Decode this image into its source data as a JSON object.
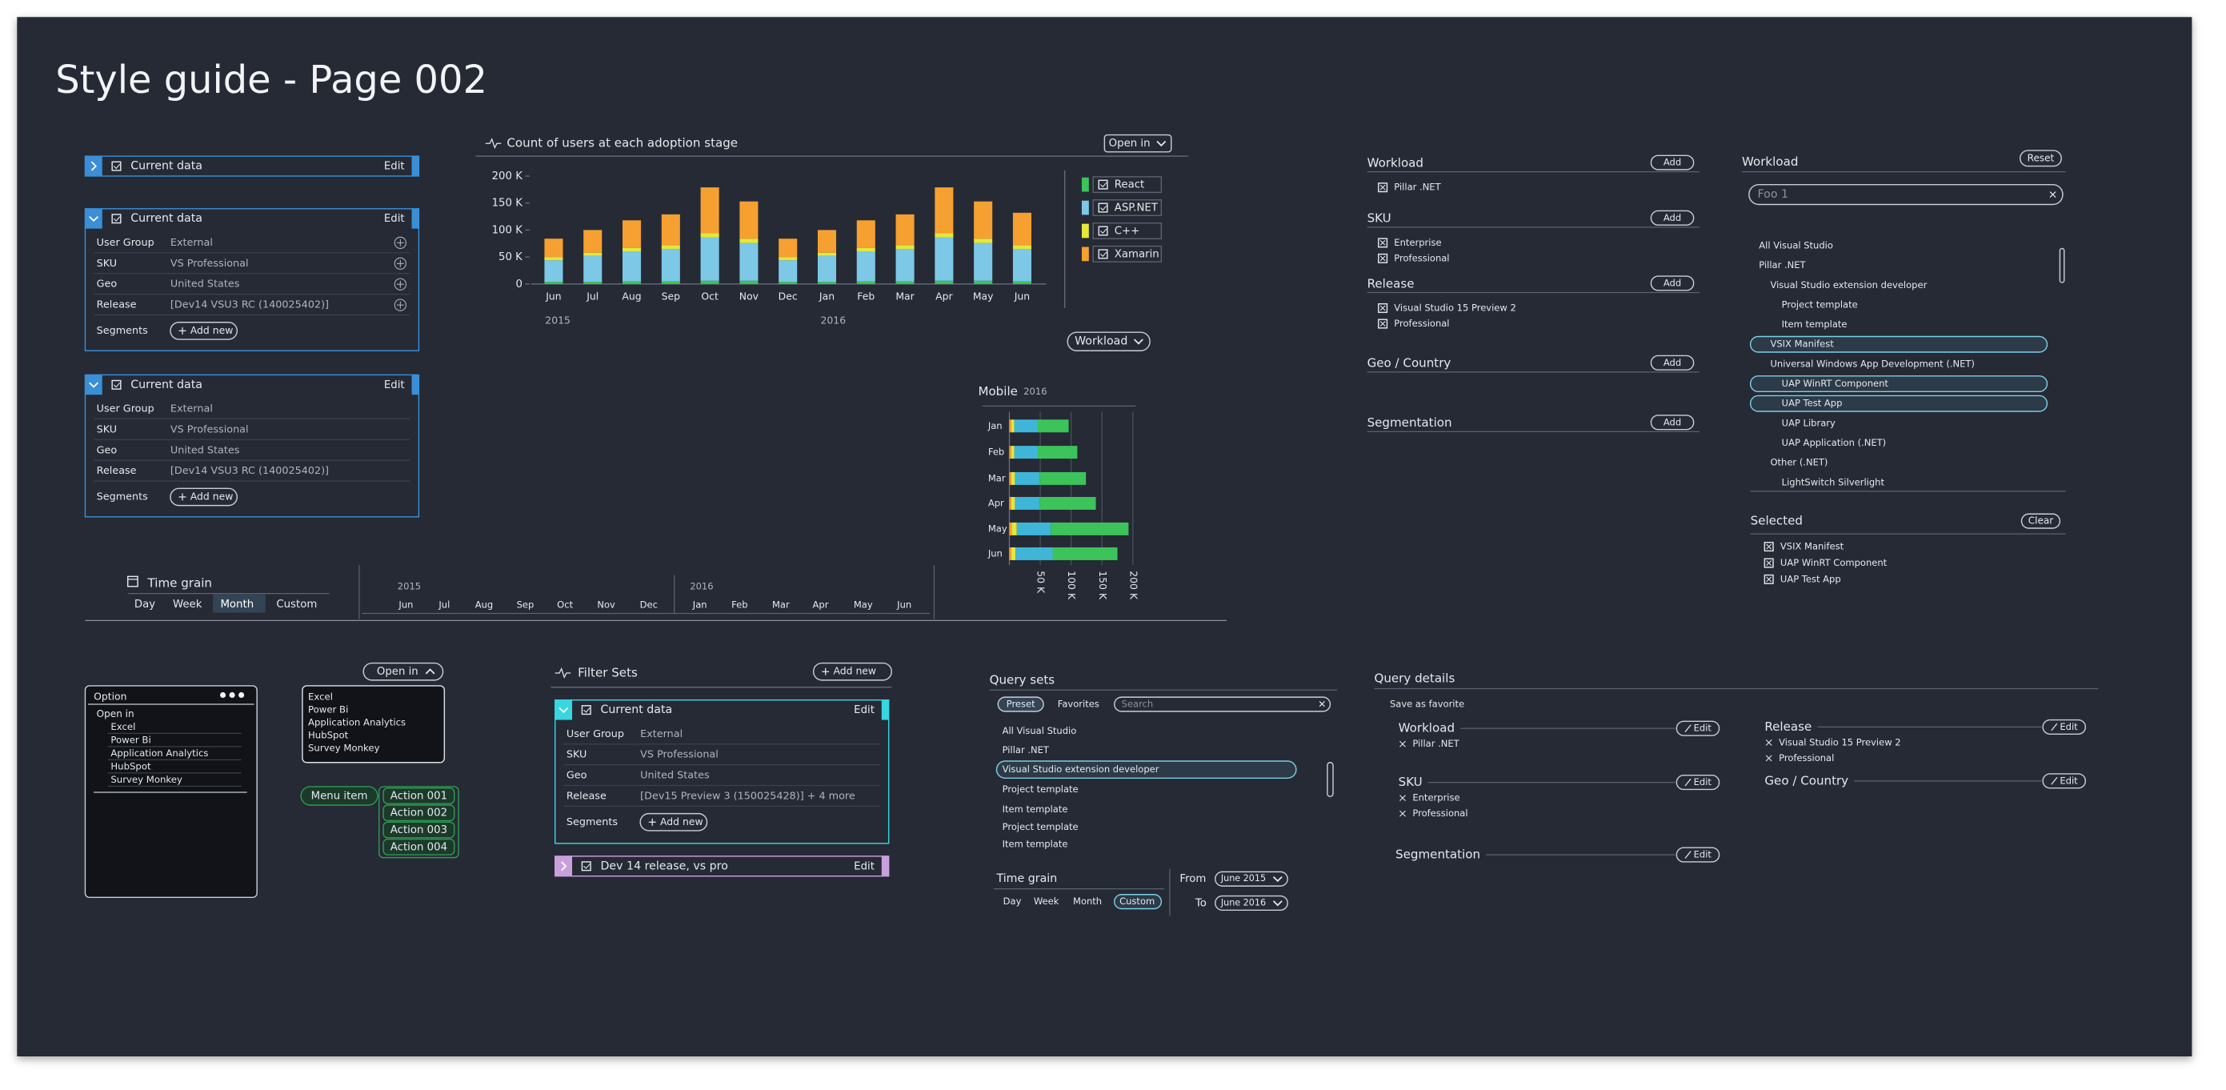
{
  "title": "Style guide - Page 002",
  "cards": [
    {
      "header": "Current data",
      "edit": "Edit"
    },
    {
      "header": "Current data",
      "edit": "Edit",
      "rows": [
        {
          "label": "User Group",
          "value": "External"
        },
        {
          "label": "SKU",
          "value": "VS Professional"
        },
        {
          "label": "Geo",
          "value": "United States"
        },
        {
          "label": "Release",
          "value": "[Dev14 VSU3 RC (140025402)]"
        }
      ],
      "segments": "Segments",
      "add": "Add new"
    },
    {
      "header": "Current data",
      "edit": "Edit",
      "rows": [
        {
          "label": "User Group",
          "value": "External"
        },
        {
          "label": "SKU",
          "value": "VS Professional"
        },
        {
          "label": "Geo",
          "value": "United States"
        },
        {
          "label": "Release",
          "value": "[Dev14 VSU3 RC (140025402)]"
        }
      ],
      "segments": "Segments",
      "add": "Add new"
    }
  ],
  "chart_data": [
    {
      "type": "bar",
      "stacked": true,
      "title": "Count of users at each adoption stage",
      "button": "Open in",
      "filter": "Workload",
      "categories": [
        "Jun",
        "Jul",
        "Aug",
        "Sep",
        "Oct",
        "Nov",
        "Dec",
        "Jan",
        "Feb",
        "Mar",
        "Apr",
        "May",
        "Jun"
      ],
      "year_labels": [
        "2015",
        "2016"
      ],
      "series": [
        {
          "name": "React",
          "color": "#3cc35a",
          "values": [
            4000,
            4000,
            5000,
            5000,
            6000,
            6000,
            4000,
            4000,
            5000,
            5000,
            6000,
            6000,
            5000
          ]
        },
        {
          "name": "ASP.NET",
          "color": "#7cc8e6",
          "values": [
            40000,
            48000,
            55000,
            60000,
            80000,
            70000,
            40000,
            48000,
            55000,
            60000,
            80000,
            70000,
            60000
          ]
        },
        {
          "name": "C++",
          "color": "#e3e83a",
          "values": [
            6000,
            6000,
            7000,
            7000,
            8000,
            8000,
            6000,
            6000,
            7000,
            7000,
            8000,
            8000,
            7000
          ]
        },
        {
          "name": "Xamarin",
          "color": "#f5a030",
          "values": [
            34000,
            42000,
            51000,
            57000,
            85000,
            69000,
            34000,
            42000,
            51000,
            57000,
            85000,
            69000,
            60000
          ]
        }
      ],
      "ylim": [
        0,
        200000
      ],
      "yticks": [
        0,
        {
          "value": 50000,
          "label": "50 K"
        },
        {
          "value": 100000,
          "label": "100 K"
        },
        {
          "value": 150000,
          "label": "150 K"
        },
        {
          "value": 200000,
          "label": "200 K"
        }
      ],
      "legend": "right"
    },
    {
      "type": "barh",
      "stacked": true,
      "title": "Mobile",
      "subtitle": "2016",
      "categories": [
        "Jan",
        "Feb",
        "Mar",
        "Apr",
        "May",
        "Jun"
      ],
      "series": [
        {
          "color": "#f5a030",
          "values": [
            3000,
            3000,
            3000,
            3000,
            4000,
            3000
          ]
        },
        {
          "color": "#e3e83a",
          "values": [
            5000,
            5000,
            6000,
            6000,
            8000,
            7000
          ]
        },
        {
          "color": "#3fb6d8",
          "values": [
            38000,
            38000,
            40000,
            40000,
            55000,
            60000
          ]
        },
        {
          "color": "#3cc35a",
          "values": [
            50000,
            64000,
            75000,
            91000,
            126000,
            105000
          ]
        }
      ],
      "xlim": [
        0,
        200000
      ],
      "xticks": [
        {
          "value": 50000,
          "label": "50 K"
        },
        {
          "value": 100000,
          "label": "100 K"
        },
        {
          "value": 150000,
          "label": "150 K"
        },
        {
          "value": 200000,
          "label": "200 K"
        }
      ],
      "grid": true
    }
  ],
  "time_grain": {
    "title": "Time grain",
    "options": [
      "Day",
      "Week",
      "Month",
      "Custom"
    ],
    "selected": 2,
    "timeline": [
      {
        "year": "2015",
        "months": [
          "Jun",
          "Jul",
          "Aug",
          "Sep",
          "Oct",
          "Nov",
          "Dec"
        ]
      },
      {
        "year": "2016",
        "months": [
          "Jan",
          "Feb",
          "Mar",
          "Apr",
          "May",
          "Jun"
        ]
      }
    ]
  },
  "workload_filters": [
    {
      "title": "Workload",
      "add": "Add",
      "items": [
        "Pillar .NET"
      ]
    },
    {
      "title": "SKU",
      "add": "Add",
      "items": [
        "Enterprise",
        "Professional"
      ]
    },
    {
      "title": "Release",
      "add": "Add",
      "items": [
        "Visual Studio 15 Preview 2",
        "Professional"
      ]
    },
    {
      "title": "Geo / Country",
      "add": "Add",
      "items": []
    },
    {
      "title": "Segmentation",
      "add": "Add",
      "items": []
    }
  ],
  "tree": {
    "title": "Workload",
    "reset": "Reset",
    "search": "Foo 1",
    "items": [
      {
        "label": "All Visual Studio",
        "level": 0,
        "selected": false
      },
      {
        "label": "Pillar .NET",
        "level": 0,
        "selected": false
      },
      {
        "label": "Visual Studio extension developer",
        "level": 1,
        "selected": false
      },
      {
        "label": "Project template",
        "level": 2,
        "selected": false
      },
      {
        "label": "Item template",
        "level": 2,
        "selected": false
      },
      {
        "label": "VSIX Manifest",
        "level": 1,
        "selected": true
      },
      {
        "label": "Universal Windows App Development (.NET)",
        "level": 1,
        "selected": false
      },
      {
        "label": "UAP WinRT Component",
        "level": 2,
        "selected": true
      },
      {
        "label": "UAP Test App",
        "level": 2,
        "selected": true
      },
      {
        "label": "UAP Library",
        "level": 2,
        "selected": false
      },
      {
        "label": "UAP Application (.NET)",
        "level": 2,
        "selected": false
      },
      {
        "label": "Other (.NET)",
        "level": 1,
        "selected": false
      },
      {
        "label": "LightSwitch Silverlight",
        "level": 2,
        "selected": false
      }
    ],
    "selected_title": "Selected",
    "clear": "Clear",
    "selected_items": [
      "VSIX Manifest",
      "UAP WinRT Component",
      "UAP Test App"
    ]
  },
  "options_menu": {
    "title": "Option",
    "open_in": "Open in",
    "items": [
      "Excel",
      "Power Bi",
      "Application Analytics",
      "HubSpot",
      "Survey Monkey"
    ]
  },
  "open_in_menu": {
    "button": "Open in",
    "items": [
      "Excel",
      "Power Bi",
      "Application Analytics",
      "HubSpot",
      "Survey Monkey"
    ]
  },
  "menu_item": {
    "label": "Menu item",
    "actions": [
      "Action 001",
      "Action 002",
      "Action 003",
      "Action 004"
    ]
  },
  "filter_sets": {
    "title": "Filter Sets",
    "add": "Add new",
    "cards": [
      {
        "header": "Current data",
        "edit": "Edit",
        "rows": [
          {
            "label": "User Group",
            "value": "External"
          },
          {
            "label": "SKU",
            "value": "VS Professional"
          },
          {
            "label": "Geo",
            "value": "United States"
          },
          {
            "label": "Release",
            "value": "[Dev15 Preview 3 (150025428)] + 4 more"
          }
        ],
        "segments": "Segments",
        "add": "Add new"
      },
      {
        "header": "Dev 14 release, vs pro",
        "edit": "Edit"
      }
    ]
  },
  "query_sets": {
    "title": "Query sets",
    "tabs": [
      "Preset",
      "Favorites"
    ],
    "search": "Search",
    "items": [
      "All Visual Studio",
      "Pillar .NET",
      "Visual Studio extension developer",
      "Project template",
      "Item template",
      "Project template",
      "Item template"
    ],
    "selected": 2,
    "time_grain": {
      "title": "Time grain",
      "options": [
        "Day",
        "Week",
        "Month",
        "Custom"
      ],
      "selected": 3
    },
    "from_label": "From",
    "from": "June 2015",
    "to_label": "To",
    "to": "June 2016"
  },
  "query_details": {
    "title": "Query details",
    "save": "Save as favorite",
    "sections": [
      {
        "title": "Workload",
        "edit": "Edit",
        "items": [
          "Pillar .NET"
        ]
      },
      {
        "title": "SKU",
        "edit": "Edit",
        "items": [
          "Enterprise",
          "Professional"
        ]
      },
      {
        "title": "Segmentation",
        "edit": "Edit",
        "items": []
      },
      {
        "title": "Release",
        "edit": "Edit",
        "items": [
          "Visual Studio 15 Preview 2",
          "Professional"
        ]
      },
      {
        "title": "Geo / Country",
        "edit": "Edit",
        "items": []
      }
    ]
  }
}
